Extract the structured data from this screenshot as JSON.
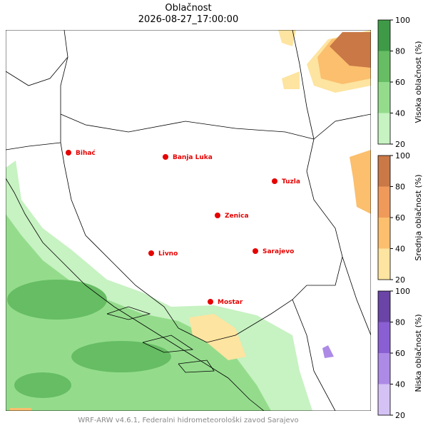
{
  "title": "Oblačnost",
  "subtitle": "2026-08-27_17:00:00",
  "footer": "WRF-ARW v4.6.1, Federalni hidrometeorološki zavod Sarajevo",
  "cities": [
    {
      "name": "Bihać"
    },
    {
      "name": "Banja Luka"
    },
    {
      "name": "Tuzla"
    },
    {
      "name": "Zenica"
    },
    {
      "name": "Livno"
    },
    {
      "name": "Sarajevo"
    },
    {
      "name": "Mostar"
    }
  ],
  "colorbars": [
    {
      "label": "Visoka oblačnost (%)",
      "ticks": [
        20,
        40,
        60,
        80,
        100
      ],
      "colors": [
        "#c7f2c2",
        "#94dc8c",
        "#66bd63",
        "#3f9a47"
      ]
    },
    {
      "label": "Srednja oblačnost (%)",
      "ticks": [
        20,
        40,
        60,
        80,
        100
      ],
      "colors": [
        "#fde4a0",
        "#fbbf6e",
        "#ef9a5a",
        "#c97846"
      ]
    },
    {
      "label": "Niska oblačnost (%)",
      "ticks": [
        20,
        40,
        60,
        80,
        100
      ],
      "colors": [
        "#d5c2f5",
        "#ad8ae6",
        "#8a5fd3",
        "#6a44a6"
      ]
    }
  ]
}
